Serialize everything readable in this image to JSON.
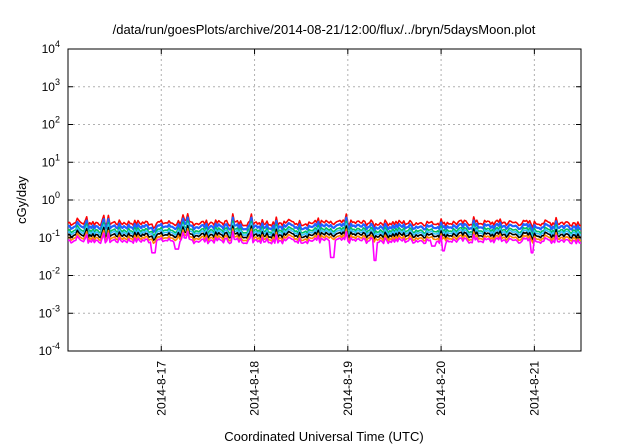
{
  "chart_data": {
    "type": "line",
    "title": "/data/run/goesPlots/archive/2014-08-21/12:00/flux/../bryn/5daysMoon.plot",
    "xlabel": "Coordinated Universal Time (UTC)",
    "ylabel": "cGy/day",
    "y_scale": "log",
    "ylim": [
      0.0001,
      10000
    ],
    "xlim": [
      "2014-08-16 00:00",
      "2014-08-21 12:00"
    ],
    "grid": true,
    "x_ticks": [
      {
        "date": "2014-08-17",
        "label": "2014-8-17"
      },
      {
        "date": "2014-08-18",
        "label": "2014-8-18"
      },
      {
        "date": "2014-08-19",
        "label": "2014-8-19"
      },
      {
        "date": "2014-08-20",
        "label": "2014-8-20"
      },
      {
        "date": "2014-08-21",
        "label": "2014-8-21"
      }
    ],
    "y_ticks": [
      {
        "value": 0.0001,
        "base": "10",
        "exp": "-4"
      },
      {
        "value": 0.001,
        "base": "10",
        "exp": "-3"
      },
      {
        "value": 0.01,
        "base": "10",
        "exp": "-2"
      },
      {
        "value": 0.1,
        "base": "10",
        "exp": "-1"
      },
      {
        "value": 1,
        "base": "10",
        "exp": "0"
      },
      {
        "value": 10,
        "base": "10",
        "exp": "1"
      },
      {
        "value": 100,
        "base": "10",
        "exp": "2"
      },
      {
        "value": 1000,
        "base": "10",
        "exp": "3"
      },
      {
        "value": 10000,
        "base": "10",
        "exp": "4"
      }
    ],
    "series": [
      {
        "color": "#ff0000",
        "baseline": 0.25
      },
      {
        "color": "#2060ff",
        "baseline": 0.2
      },
      {
        "color": "#00c060",
        "baseline": 0.16
      },
      {
        "color": "#30c0ff",
        "baseline": 0.14
      },
      {
        "color": "#000000",
        "baseline": 0.12
      },
      {
        "color": "#ff8800",
        "baseline": 0.1
      },
      {
        "color": "#ff00ff",
        "baseline": 0.085
      }
    ],
    "dips": [
      {
        "date": "2014-08-16 22:00",
        "value": 0.04
      },
      {
        "date": "2014-08-17 04:00",
        "value": 0.05
      },
      {
        "date": "2014-08-18 20:00",
        "value": 0.03
      },
      {
        "date": "2014-08-19 07:00",
        "value": 0.025
      },
      {
        "date": "2014-08-19 22:00",
        "value": 0.06
      },
      {
        "date": "2014-08-20 00:30",
        "value": 0.045
      },
      {
        "date": "2014-08-20 23:30",
        "value": 0.04
      }
    ]
  }
}
